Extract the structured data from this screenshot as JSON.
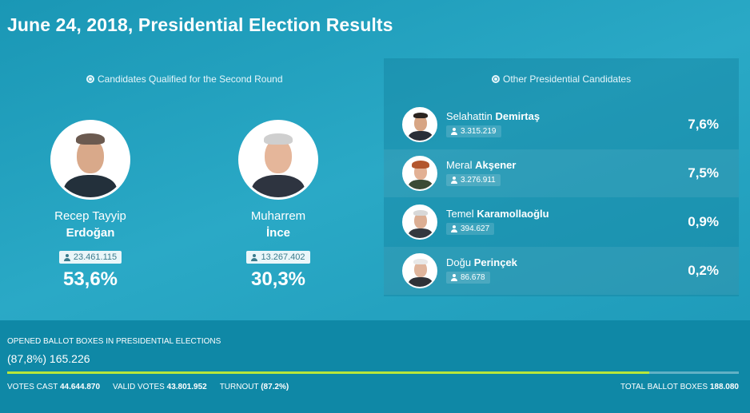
{
  "title": "June 24, 2018, Presidential Election Results",
  "qualified": {
    "heading": "Candidates Qualified for the Second Round",
    "candidates": [
      {
        "first": "Recep Tayyip",
        "last": "Erdoğan",
        "votes": "23.461.115",
        "pct": "53,6%",
        "skin": "#d9a98a",
        "hair": "#6b5a50",
        "suit": "#23303b"
      },
      {
        "first": "Muharrem",
        "last": "İnce",
        "votes": "13.267.402",
        "pct": "30,3%",
        "skin": "#e5b69a",
        "hair": "#cfcfcf",
        "suit": "#2e3440"
      }
    ]
  },
  "others": {
    "heading": "Other Presidential Candidates",
    "candidates": [
      {
        "first": "Selahattin",
        "last": "Demirtaş",
        "votes": "3.315.219",
        "pct": "7,6%",
        "skin": "#d7a584",
        "hair": "#2b2420",
        "suit": "#2a2f38"
      },
      {
        "first": "Meral",
        "last": "Akşener",
        "votes": "3.276.911",
        "pct": "7,5%",
        "skin": "#e2b094",
        "hair": "#b3562e",
        "suit": "#3b4b36"
      },
      {
        "first": "Temel",
        "last": "Karamollaoğlu",
        "votes": "394.627",
        "pct": "0,9%",
        "skin": "#dcae93",
        "hair": "#d8d8d8",
        "suit": "#34383e"
      },
      {
        "first": "Doğu",
        "last": "Perinçek",
        "votes": "86.678",
        "pct": "0,2%",
        "skin": "#e0b59c",
        "hair": "#e8e8e8",
        "suit": "#2f3238"
      }
    ]
  },
  "ballot": {
    "label": "OPENED BALLOT BOXES IN PRESIDENTIAL ELECTIONS",
    "value": "(87,8%) 165.226",
    "progress_pct": 87.8,
    "progress_color": "#b8e63a",
    "votes_cast_label": "VOTES CAST",
    "votes_cast": "44.644.870",
    "valid_votes_label": "VALID VOTES",
    "valid_votes": "43.801.952",
    "turnout_label": "TURNOUT",
    "turnout": "(87.2%)",
    "total_label": "TOTAL BALLOT BOXES",
    "total": "188.080"
  }
}
